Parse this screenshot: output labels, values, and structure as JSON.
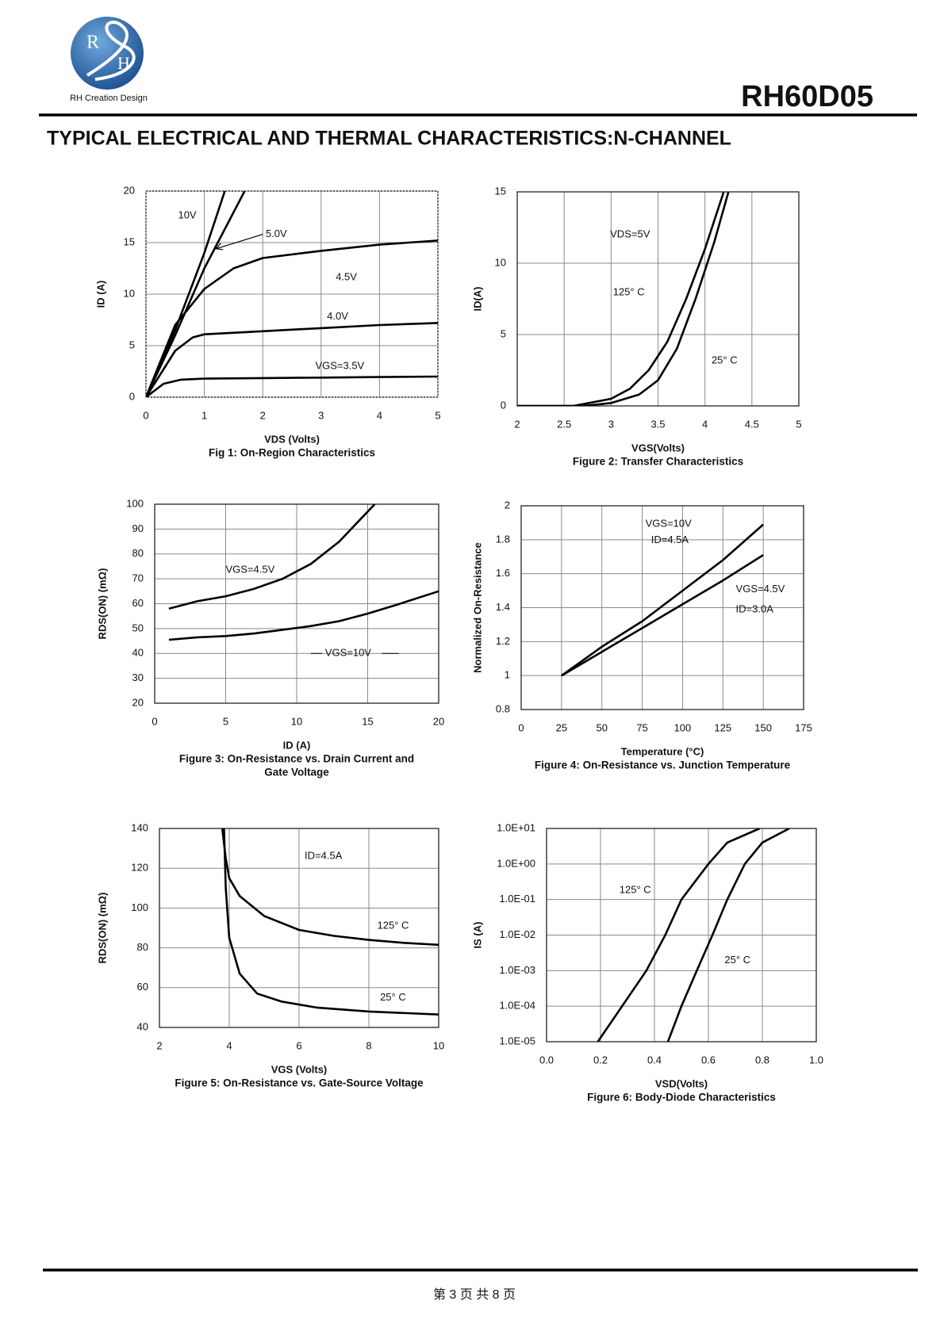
{
  "header": {
    "logo_text": "RH Creation Design",
    "logo_letters": [
      "R",
      "H"
    ],
    "part_number": "RH60D05"
  },
  "section_title": "TYPICAL ELECTRICAL AND THERMAL CHARACTERISTICS:N-CHANNEL",
  "chart_data": [
    {
      "type": "line",
      "ylabel": "ID (A)",
      "xlabel": "VDS (Volts)",
      "caption": [
        "Fig 1: On-Region Characteristics"
      ],
      "xlim": [
        0,
        5
      ],
      "ylim": [
        0,
        20
      ],
      "xticks": [
        0,
        1,
        2,
        3,
        4,
        5
      ],
      "yticks": [
        0,
        5,
        10,
        15,
        20
      ],
      "grid": true,
      "color": "#000000",
      "series": [
        {
          "name": "10V",
          "x": [
            0,
            0.5,
            1,
            1.35
          ],
          "values": [
            0,
            6.5,
            14,
            20
          ]
        },
        {
          "name": "5.0V",
          "x": [
            0,
            0.5,
            1,
            1.69
          ],
          "values": [
            0,
            6,
            12.5,
            20
          ]
        },
        {
          "name": "4.5V",
          "x": [
            0,
            0.5,
            1,
            1.5,
            2,
            3,
            4,
            5
          ],
          "values": [
            0,
            7,
            10.5,
            12.5,
            13.5,
            14.2,
            14.8,
            15.2
          ]
        },
        {
          "name": "4.0V",
          "x": [
            0,
            0.5,
            0.8,
            1,
            2,
            3,
            4,
            5
          ],
          "values": [
            0,
            4.5,
            5.8,
            6.1,
            6.4,
            6.7,
            7,
            7.2
          ]
        },
        {
          "name": "VGS=3.5V",
          "x": [
            0,
            0.3,
            0.6,
            1,
            2,
            3,
            4,
            5
          ],
          "values": [
            0,
            1.3,
            1.7,
            1.8,
            1.85,
            1.9,
            1.95,
            2
          ]
        }
      ],
      "annotations": []
    },
    {
      "type": "line",
      "ylabel": "ID(A)",
      "xlabel": "VGS(Volts)",
      "caption": [
        "Figure 2: Transfer Characteristics"
      ],
      "xlim": [
        2,
        5
      ],
      "ylim": [
        0,
        15
      ],
      "xticks": [
        2,
        2.5,
        3,
        3.5,
        4,
        4.5,
        5
      ],
      "yticks": [
        0,
        5,
        10,
        15
      ],
      "grid": true,
      "color": "#000000",
      "series": [
        {
          "name": "125° C",
          "x": [
            2,
            2.6,
            3,
            3.2,
            3.4,
            3.6,
            3.8,
            4,
            4.2
          ],
          "values": [
            0,
            0,
            0.5,
            1.2,
            2.5,
            4.5,
            7.5,
            11,
            15
          ]
        },
        {
          "name": "25° C",
          "x": [
            2,
            2.7,
            3,
            3.3,
            3.5,
            3.7,
            3.9,
            4.1,
            4.25
          ],
          "values": [
            0,
            0,
            0.2,
            0.8,
            1.8,
            4,
            7.5,
            11.5,
            15
          ]
        }
      ],
      "annotations": [
        "VDS=5V"
      ]
    },
    {
      "type": "line",
      "ylabel": "RDS(ON) (mΩ)",
      "xlabel": "ID (A)",
      "caption": [
        "Figure 3: On-Resistance vs. Drain Current and",
        "Gate Voltage"
      ],
      "xlim": [
        0,
        20
      ],
      "ylim": [
        20,
        100
      ],
      "xticks": [
        0,
        5,
        10,
        15,
        20
      ],
      "yticks": [
        20,
        30,
        40,
        50,
        60,
        70,
        80,
        90,
        100
      ],
      "grid": true,
      "color": "#000000",
      "series": [
        {
          "name": "VGS=4.5V",
          "x": [
            1,
            3,
            5,
            7,
            9,
            11,
            13,
            14,
            15.5
          ],
          "values": [
            58,
            61,
            63,
            66,
            70,
            76,
            85,
            91,
            100
          ]
        },
        {
          "name": "VGS=10V",
          "x": [
            1,
            3,
            5,
            7,
            9,
            11,
            13,
            15,
            17,
            20
          ],
          "values": [
            45.5,
            46.5,
            47,
            48,
            49.5,
            51,
            53,
            56,
            59.5,
            65
          ]
        }
      ],
      "annotations": []
    },
    {
      "type": "line",
      "ylabel": "Normalized On-Resistance",
      "xlabel": "Temperature (°C)",
      "caption": [
        "Figure 4: On-Resistance vs. Junction Temperature"
      ],
      "xlim": [
        0,
        175
      ],
      "ylim": [
        0.8,
        2
      ],
      "xticks": [
        0,
        25,
        50,
        75,
        100,
        125,
        150,
        175
      ],
      "yticks": [
        0.8,
        1,
        1.2,
        1.4,
        1.6,
        1.8,
        2
      ],
      "grid": true,
      "color": "#000000",
      "series": [
        {
          "name": "VGS=10V",
          "x": [
            25,
            50,
            75,
            100,
            125,
            150
          ],
          "values": [
            1,
            1.17,
            1.32,
            1.5,
            1.68,
            1.89
          ]
        },
        {
          "name": "VGS=4.5V",
          "x": [
            25,
            50,
            75,
            100,
            125,
            150
          ],
          "values": [
            1,
            1.14,
            1.28,
            1.42,
            1.56,
            1.71
          ]
        }
      ],
      "annotations": [
        "ID=4.5A",
        "ID=3.0A"
      ]
    },
    {
      "type": "line",
      "ylabel": "RDS(ON) (mΩ)",
      "xlabel": "VGS (Volts)",
      "caption": [
        "Figure 5: On-Resistance vs. Gate-Source Voltage"
      ],
      "xlim": [
        2,
        10
      ],
      "ylim": [
        40,
        140
      ],
      "xticks": [
        2,
        4,
        6,
        8,
        10
      ],
      "yticks": [
        40,
        60,
        80,
        100,
        120,
        140
      ],
      "grid": true,
      "color": "#000000",
      "series": [
        {
          "name": "125° C",
          "x": [
            3.8,
            3.9,
            4,
            4.3,
            5,
            6,
            7,
            8,
            9,
            10
          ],
          "values": [
            140,
            125,
            115,
            106,
            96,
            89,
            86,
            84,
            82.5,
            81.5
          ]
        },
        {
          "name": "25° C",
          "x": [
            3.85,
            3.9,
            4,
            4.3,
            4.8,
            5.5,
            6.5,
            8,
            10
          ],
          "values": [
            140,
            110,
            85,
            67,
            57,
            53,
            50,
            48,
            46.5
          ]
        }
      ],
      "annotations": [
        "ID=4.5A"
      ]
    },
    {
      "type": "line",
      "ylabel": "IS (A)",
      "xlabel": "VSD(Volts)",
      "caption": [
        "Figure 6: Body-Diode Characteristics"
      ],
      "xlim": [
        0,
        1
      ],
      "ylim": [
        1e-05,
        10
      ],
      "ylog": true,
      "xticks": [
        {
          "value": 0,
          "label": "0.0"
        },
        0.2,
        0.4,
        0.6,
        0.8,
        {
          "value": 1,
          "label": "1.0"
        }
      ],
      "yticks": [
        {
          "value": 10,
          "label": "1.0E+01"
        },
        {
          "value": 1,
          "label": "1.0E+00"
        },
        {
          "value": 0.1,
          "label": "1.0E-01"
        },
        {
          "value": 0.01,
          "label": "1.0E-02"
        },
        {
          "value": 0.001,
          "label": "1.0E-03"
        },
        {
          "value": 0.0001,
          "label": "1.0E-04"
        },
        {
          "value": 1e-05,
          "label": "1.0E-05"
        }
      ],
      "grid": true,
      "color": "#000000",
      "series": [
        {
          "name": "125° C",
          "x": [
            0.19,
            0.28,
            0.37,
            0.44,
            0.5,
            0.6,
            0.67,
            0.79
          ],
          "values": [
            1e-05,
            0.0001,
            0.001,
            0.01,
            0.1,
            1,
            4,
            10
          ]
        },
        {
          "name": "25° C",
          "x": [
            0.45,
            0.5,
            0.557,
            0.615,
            0.67,
            0.735,
            0.8,
            0.9
          ],
          "values": [
            1e-05,
            0.0001,
            0.001,
            0.01,
            0.1,
            1,
            4,
            10
          ]
        }
      ],
      "annotations": []
    }
  ],
  "footer": {
    "page": "第 3 页 共 8 页"
  }
}
